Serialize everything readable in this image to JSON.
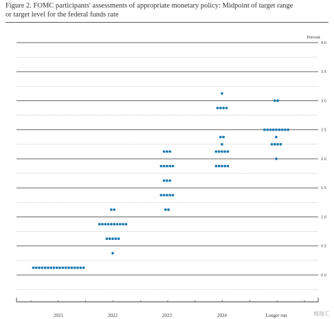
{
  "figure": {
    "title_line1": "Figure 2.  FOMC participants' assessments of appropriate monetary policy:  Midpoint of target range",
    "title_line2": "or target level for the federal funds rate"
  },
  "watermark": "格隆汇",
  "chart_data": {
    "type": "scatter",
    "subtype": "dot-plot",
    "title": "Figure 2. FOMC participants' assessments of appropriate monetary policy: Midpoint of target range or target level for the federal funds rate",
    "unit_label": "Percent",
    "categories": [
      "2021",
      "2022",
      "2023",
      "2024",
      "Longer run"
    ],
    "y_ticks": [
      "4.0",
      "3.5",
      "3.0",
      "2.5",
      "2.0",
      "1.5",
      "1.0",
      "0.5",
      "0.0"
    ],
    "ylim": [
      -0.5,
      4.0
    ],
    "dot_color": "#1a78b0",
    "series": [
      {
        "category": "2021",
        "dots": [
          {
            "y": 0.125,
            "count": 18
          }
        ]
      },
      {
        "category": "2022",
        "dots": [
          {
            "y": 1.125,
            "count": 2
          },
          {
            "y": 0.875,
            "count": 10
          },
          {
            "y": 0.625,
            "count": 5
          },
          {
            "y": 0.375,
            "count": 1
          }
        ]
      },
      {
        "category": "2023",
        "dots": [
          {
            "y": 2.125,
            "count": 3
          },
          {
            "y": 1.875,
            "count": 5
          },
          {
            "y": 1.625,
            "count": 3
          },
          {
            "y": 1.375,
            "count": 5
          },
          {
            "y": 1.125,
            "count": 2
          }
        ]
      },
      {
        "category": "2024",
        "dots": [
          {
            "y": 3.125,
            "count": 1
          },
          {
            "y": 2.875,
            "count": 4
          },
          {
            "y": 2.375,
            "count": 2
          },
          {
            "y": 2.25,
            "count": 1
          },
          {
            "y": 2.125,
            "count": 5
          },
          {
            "y": 1.875,
            "count": 5
          }
        ]
      },
      {
        "category": "Longer run",
        "dots": [
          {
            "y": 3.0,
            "count": 2
          },
          {
            "y": 2.5,
            "count": 9
          },
          {
            "y": 2.375,
            "count": 1
          },
          {
            "y": 2.25,
            "count": 4
          },
          {
            "y": 2.0,
            "count": 1
          }
        ]
      }
    ],
    "grid": {
      "solid_major": true,
      "dotted_minor": true
    }
  }
}
